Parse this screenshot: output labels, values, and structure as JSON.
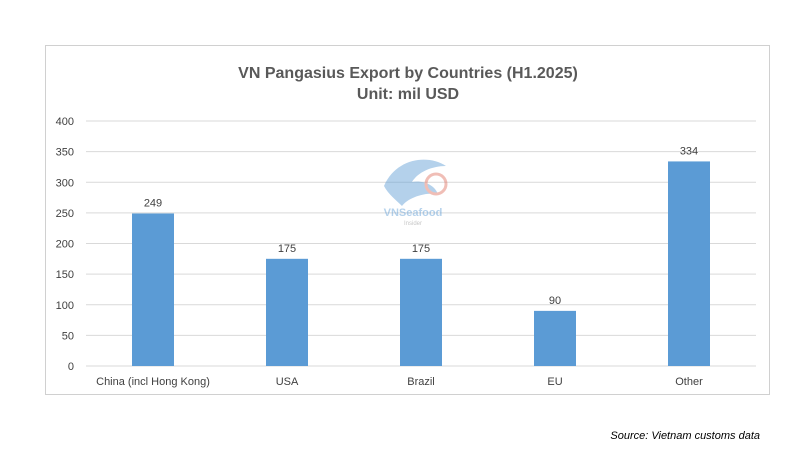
{
  "chart_data": {
    "type": "bar",
    "title": "VN Pangasius Export by Countries (H1.2025)",
    "subtitle": "Unit: mil USD",
    "categories": [
      "China (incl Hong Kong)",
      "USA",
      "Brazil",
      "EU",
      "Other"
    ],
    "values": [
      249,
      175,
      175,
      90,
      334
    ],
    "data_labels": [
      "249",
      "175",
      "175",
      "90",
      "334"
    ],
    "ylim": [
      0,
      400
    ],
    "yticks": [
      "0",
      "50",
      "100",
      "150",
      "200",
      "250",
      "300",
      "350",
      "400"
    ],
    "xlabel": "",
    "ylabel": "",
    "grid": true,
    "legend": "none",
    "bar_color": "#5b9bd5",
    "grid_color": "#d9d9d9"
  },
  "watermark": {
    "text": "VNSeafood",
    "subtext": "Insider"
  },
  "source": "Source: Vietnam customs data"
}
